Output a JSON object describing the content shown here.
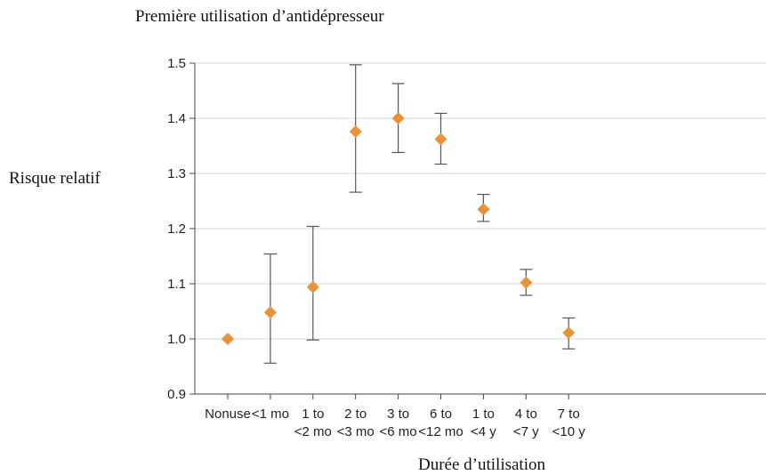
{
  "chart_data": {
    "type": "scatter",
    "title": "Première utilisation d’antidépresseur",
    "xlabel": "Durée d’utilisation",
    "ylabel": "Risque relatif",
    "ylim": [
      0.9,
      1.5
    ],
    "yticks": [
      "0.9",
      "1.0",
      "1.1",
      "1.2",
      "1.3",
      "1.4",
      "1.5"
    ],
    "grid": true,
    "marker": "diamond",
    "marker_color": "#e8923a",
    "categories": [
      [
        "Nonuse"
      ],
      [
        "<1 mo"
      ],
      [
        "1 to",
        "<2 mo"
      ],
      [
        "2 to",
        "<3 mo"
      ],
      [
        "3 to",
        "<6 mo"
      ],
      [
        "6 to",
        "<12 mo"
      ],
      [
        "1 to",
        "<4 y"
      ],
      [
        "4 to",
        "<7 y"
      ],
      [
        "7 to",
        "<10 y"
      ]
    ],
    "values": [
      1.0,
      1.048,
      1.094,
      1.376,
      1.4,
      1.362,
      1.235,
      1.102,
      1.011
    ],
    "ci_low": [
      null,
      0.956,
      0.998,
      1.266,
      1.338,
      1.317,
      1.213,
      1.079,
      0.982
    ],
    "ci_high": [
      null,
      1.154,
      1.204,
      1.497,
      1.463,
      1.409,
      1.262,
      1.126,
      1.038
    ]
  }
}
